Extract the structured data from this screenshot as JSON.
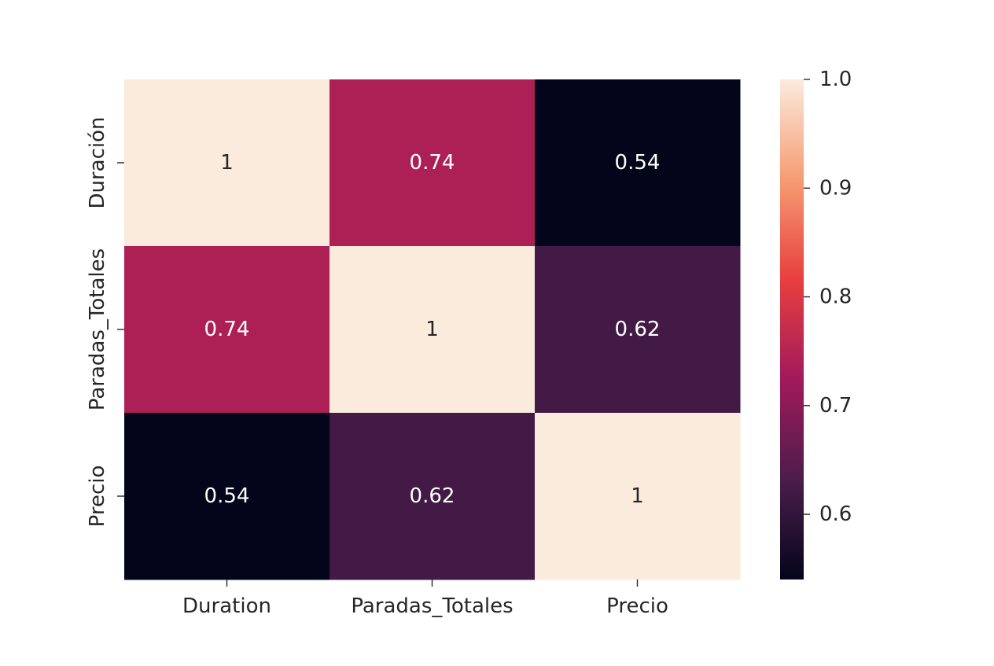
{
  "chart_data": {
    "type": "heatmap",
    "title": "",
    "xlabel": "",
    "ylabel": "",
    "x_categories": [
      "Duration",
      "Paradas_Totales",
      "Precio"
    ],
    "y_categories": [
      "Duración",
      "Paradas_Totales",
      "Precio"
    ],
    "values": [
      [
        1,
        0.74,
        0.54
      ],
      [
        0.74,
        1,
        0.62
      ],
      [
        0.54,
        0.62,
        1
      ]
    ],
    "annotations": [
      [
        "1",
        "0.74",
        "0.54"
      ],
      [
        "0.74",
        "1",
        "0.62"
      ],
      [
        "0.54",
        "0.62",
        "1"
      ]
    ],
    "colorbar": {
      "range": [
        0.54,
        1.0
      ],
      "ticks": [
        0.6,
        0.7,
        0.8,
        0.9,
        1.0
      ],
      "tick_labels": [
        "0.6",
        "0.7",
        "0.8",
        "0.9",
        "1.0"
      ],
      "colormap": "rocket",
      "colors": [
        "#03051a",
        "#4c1d4b",
        "#a11a5b",
        "#e83f3f",
        "#f69c73",
        "#faebdd"
      ]
    },
    "grid": false
  }
}
